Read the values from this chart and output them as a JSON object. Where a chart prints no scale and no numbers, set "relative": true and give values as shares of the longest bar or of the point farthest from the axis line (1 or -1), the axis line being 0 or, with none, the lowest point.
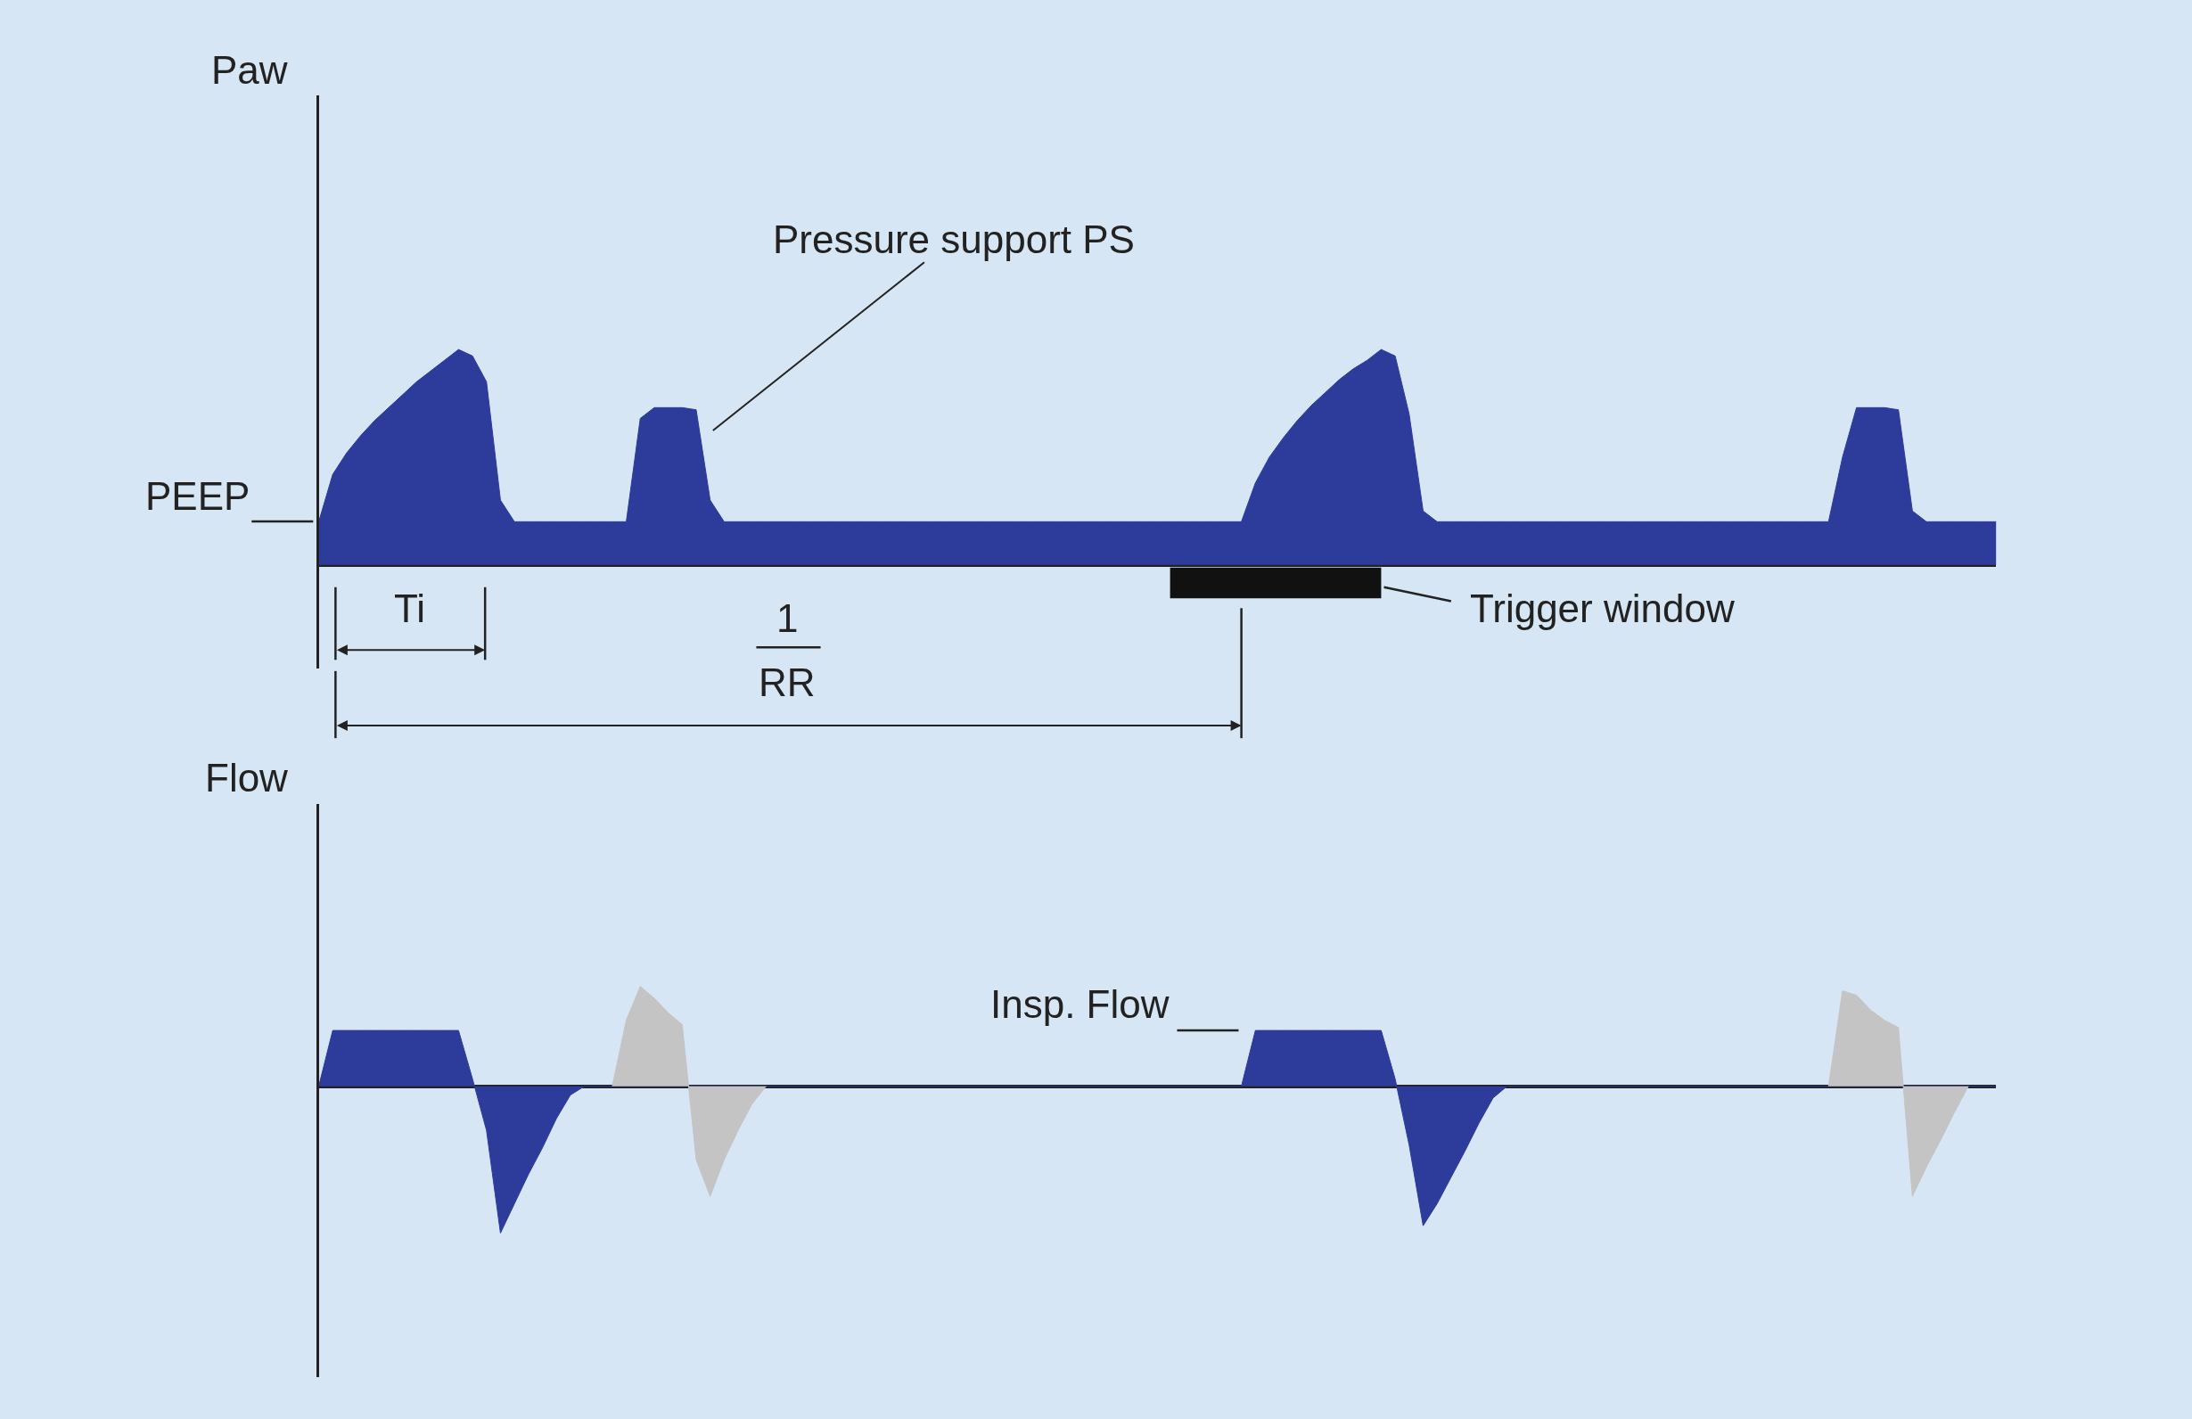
{
  "chart_data": [
    {
      "type": "area",
      "ylabel": "Paw",
      "relative": true,
      "categories": [
        null,
        null,
        null,
        null,
        null,
        null,
        null,
        null,
        null,
        null,
        null,
        null,
        null,
        null,
        null,
        null,
        null,
        null,
        null,
        null,
        null,
        null,
        null,
        null,
        null,
        null,
        null,
        null,
        null,
        null,
        null,
        null,
        null,
        null,
        null,
        null,
        null,
        null,
        null,
        null,
        null,
        null,
        null,
        null,
        null,
        null,
        null,
        null,
        null,
        null,
        null,
        null,
        null,
        null,
        null,
        null,
        null,
        null,
        null,
        null,
        null,
        null,
        null,
        null,
        null,
        null,
        null,
        null,
        null,
        null,
        null,
        null,
        null,
        null,
        null,
        null,
        null,
        null,
        null,
        null,
        null,
        null,
        null,
        null,
        null,
        null,
        null,
        null,
        null,
        null,
        null,
        null,
        null,
        null,
        null,
        null,
        null,
        null,
        null,
        null,
        null,
        null,
        null,
        null,
        null,
        null,
        null,
        null,
        null,
        null,
        null,
        null,
        null,
        null,
        null,
        null,
        null,
        null,
        null,
        null,
        null
      ],
      "series": [
        {
          "color": "#2d3c9b",
          "values": [
            0.2,
            0.42,
            0.52,
            0.6,
            0.67,
            0.73,
            0.79,
            0.85,
            0.9,
            0.95,
            1.0,
            0.97,
            0.85,
            0.3,
            0.2,
            0.2,
            0.2,
            0.2,
            0.2,
            0.2,
            0.2,
            0.2,
            0.2,
            0.68,
            0.73,
            0.73,
            0.73,
            0.72,
            0.3,
            0.2,
            0.2,
            0.2,
            0.2,
            0.2,
            0.2,
            0.2,
            0.2,
            0.2,
            0.2,
            0.2,
            0.2,
            0.2,
            0.2,
            0.2,
            0.2,
            0.2,
            0.2,
            0.2,
            0.2,
            0.2,
            0.2,
            0.2,
            0.2,
            0.2,
            0.2,
            0.2,
            0.2,
            0.2,
            0.2,
            0.2,
            0.2,
            0.2,
            0.2,
            0.2,
            0.2,
            0.2,
            0.2,
            0.38,
            0.5,
            0.59,
            0.67,
            0.74,
            0.8,
            0.86,
            0.91,
            0.95,
            1.0,
            0.97,
            0.7,
            0.25,
            0.2,
            0.2,
            0.2,
            0.2,
            0.2,
            0.2,
            0.2,
            0.2,
            0.2,
            0.2,
            0.2,
            0.2,
            0.2,
            0.2,
            0.2,
            0.2,
            0.2,
            0.2,
            0.2,
            0.2,
            0.2,
            0.2,
            0.2,
            0.2,
            0.2,
            0.2,
            0.2,
            0.2,
            0.2,
            0.5,
            0.73,
            0.73,
            0.73,
            0.72,
            0.25,
            0.2,
            0.2,
            0.2,
            0.2,
            0.2,
            0.2
          ]
        }
      ],
      "annotations": [
        "Pressure support PS",
        "PEEP",
        "Ti",
        "1",
        "RR",
        "Trigger window"
      ]
    },
    {
      "type": "area",
      "ylabel": "Flow",
      "relative": true,
      "categories": [
        null,
        null,
        null,
        null,
        null,
        null,
        null,
        null,
        null,
        null,
        null,
        null,
        null,
        null,
        null,
        null,
        null,
        null,
        null,
        null,
        null,
        null,
        null,
        null,
        null,
        null,
        null,
        null,
        null,
        null,
        null,
        null,
        null,
        null,
        null,
        null,
        null,
        null,
        null,
        null,
        null,
        null,
        null,
        null,
        null,
        null,
        null,
        null,
        null,
        null,
        null,
        null,
        null,
        null,
        null,
        null,
        null,
        null,
        null,
        null,
        null,
        null,
        null,
        null,
        null,
        null,
        null,
        null,
        null,
        null,
        null,
        null,
        null,
        null,
        null,
        null,
        null,
        null,
        null,
        null,
        null,
        null,
        null,
        null,
        null,
        null,
        null,
        null,
        null,
        null,
        null,
        null,
        null,
        null,
        null,
        null,
        null,
        null,
        null,
        null,
        null,
        null,
        null,
        null,
        null,
        null,
        null,
        null,
        null,
        null,
        null,
        null,
        null,
        null,
        null,
        null,
        null,
        null,
        null,
        null,
        null
      ],
      "series": [
        {
          "color": "#2d3c9b",
          "values": [
            0,
            0.38,
            0.38,
            0.38,
            0.38,
            0.38,
            0.38,
            0.38,
            0.38,
            0.38,
            0.38,
            0.05,
            -0.3,
            -1,
            -0.8,
            -0.6,
            -0.42,
            -0.22,
            -0.06,
            0,
            0,
            0,
            0,
            0,
            0,
            0,
            0,
            0,
            0,
            0,
            0,
            0,
            0,
            0,
            0,
            0,
            0,
            0,
            0,
            0,
            0,
            0,
            0,
            0,
            0,
            0,
            0,
            0,
            0,
            0,
            0,
            0,
            0,
            0,
            0,
            0,
            0,
            0,
            0,
            0,
            0,
            0,
            0,
            0,
            0,
            0,
            0,
            0.38,
            0.38,
            0.38,
            0.38,
            0.38,
            0.38,
            0.38,
            0.38,
            0.38,
            0.38,
            0.05,
            -0.4,
            -0.95,
            -0.8,
            -0.62,
            -0.44,
            -0.25,
            -0.08,
            0,
            0,
            0,
            0,
            0,
            0,
            0,
            0,
            0,
            0,
            0,
            0,
            0,
            0,
            0,
            0,
            0,
            0,
            0,
            0,
            0,
            0,
            0,
            0,
            0,
            0,
            0,
            0,
            0,
            0,
            0,
            0,
            0,
            0,
            0,
            0
          ]
        },
        {
          "color": "#c4c4c4",
          "values": [
            null,
            null,
            null,
            null,
            null,
            null,
            null,
            null,
            null,
            null,
            null,
            null,
            null,
            null,
            null,
            null,
            null,
            null,
            null,
            null,
            null,
            0,
            0.45,
            0.68,
            0.6,
            0.5,
            0.42,
            -0.5,
            -0.75,
            -0.5,
            -0.3,
            -0.12,
            0,
            null,
            null,
            null,
            null,
            null,
            null,
            null,
            null,
            null,
            null,
            null,
            null,
            null,
            null,
            null,
            null,
            null,
            null,
            null,
            null,
            null,
            null,
            null,
            null,
            null,
            null,
            null,
            null,
            null,
            null,
            null,
            null,
            null,
            null,
            null,
            null,
            null,
            null,
            null,
            null,
            null,
            null,
            null,
            null,
            null,
            null,
            null,
            null,
            null,
            null,
            null,
            null,
            null,
            null,
            null,
            null,
            null,
            null,
            null,
            null,
            null,
            null,
            null,
            null,
            null,
            null,
            null,
            null,
            null,
            null,
            null,
            null,
            null,
            null,
            null,
            0,
            0.65,
            0.62,
            0.52,
            0.45,
            0.4,
            -0.75,
            -0.55,
            -0.37,
            -0.18,
            0,
            null,
            null
          ]
        }
      ],
      "annotations": [
        "Insp. Flow"
      ]
    }
  ]
}
